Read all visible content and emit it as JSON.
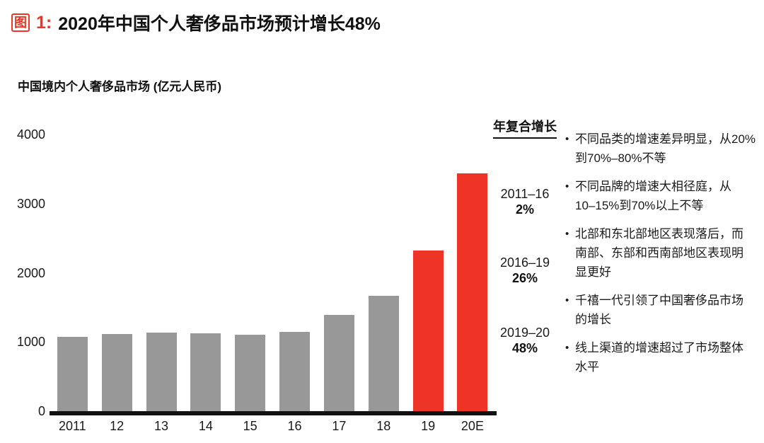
{
  "header": {
    "figure_badge": "图",
    "figure_number": "1:",
    "title": "2020年中国个人奢侈品市场预计增长48%"
  },
  "chart_data": {
    "type": "bar",
    "title": "中国境内个人奢侈品市场 (亿元人民币)",
    "categories": [
      "2011",
      "12",
      "13",
      "14",
      "15",
      "16",
      "17",
      "18",
      "19",
      "20E"
    ],
    "values": [
      1070,
      1120,
      1140,
      1125,
      1100,
      1145,
      1390,
      1670,
      2320,
      3440
    ],
    "highlight_start_index": 8,
    "ylim": [
      0,
      4000
    ],
    "yticks": [
      0,
      1000,
      2000,
      3000,
      4000
    ],
    "grid": false,
    "legend": null,
    "bar_color": "#989898",
    "highlight_color": "#ee3426"
  },
  "cagr": {
    "header": "年复合增长",
    "items": [
      {
        "period": "2011–16",
        "value": "2%"
      },
      {
        "period": "2016–19",
        "value": "26%"
      },
      {
        "period": "2019–20",
        "value": "48%"
      }
    ]
  },
  "bullets": [
    "不同品类的增速差异明显，从20%\n到70%–80%不等",
    "不同品牌的增速大相径庭，从\n10–15%到70%以上不等",
    "北部和东北部地区表现落后，而\n南部、东部和西南部地区表现明\n显更好",
    "千禧一代引领了中国奢侈品市场\n的增长",
    "线上渠道的增速超过了市场整体\n水平"
  ],
  "colors": {
    "accent_red": "#ee3426",
    "bar_gray": "#989898",
    "axis_black": "#111111"
  }
}
